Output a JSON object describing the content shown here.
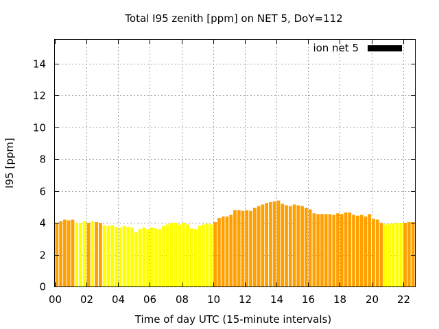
{
  "chart_data": {
    "type": "bar",
    "title": "Total I95 zenith [ppm] on NET 5, DoY=112",
    "xlabel": "Time of day UTC (15-minute intervals)",
    "ylabel": "I95 [ppm]",
    "ylim": [
      0,
      15.5
    ],
    "xlim": [
      0,
      22.75
    ],
    "yticks": [
      "0",
      "2",
      "4",
      "6",
      "8",
      "10",
      "12",
      "14"
    ],
    "xticks": [
      "00",
      "02",
      "04",
      "06",
      "08",
      "10",
      "12",
      "14",
      "16",
      "18",
      "20",
      "22"
    ],
    "grid": true,
    "legend_position": "top-right",
    "series": [
      {
        "name": "ion net 5",
        "legend_color": "#000000"
      }
    ],
    "color_scheme": {
      "orange": "#ffa000",
      "yellow": "#ffff00"
    },
    "bar_interval_hours": 0.25,
    "x": [
      0.0,
      0.25,
      0.5,
      0.75,
      1.0,
      1.25,
      1.5,
      1.75,
      2.0,
      2.25,
      2.5,
      2.75,
      3.0,
      3.25,
      3.5,
      3.75,
      4.0,
      4.25,
      4.5,
      4.75,
      5.0,
      5.25,
      5.5,
      5.75,
      6.0,
      6.25,
      6.5,
      6.75,
      7.0,
      7.25,
      7.5,
      7.75,
      8.0,
      8.25,
      8.5,
      8.75,
      9.0,
      9.25,
      9.5,
      9.75,
      10.0,
      10.25,
      10.5,
      10.75,
      11.0,
      11.25,
      11.5,
      11.75,
      12.0,
      12.25,
      12.5,
      12.75,
      13.0,
      13.25,
      13.5,
      13.75,
      14.0,
      14.25,
      14.5,
      14.75,
      15.0,
      15.25,
      15.5,
      15.75,
      16.0,
      16.25,
      16.5,
      16.75,
      17.0,
      17.25,
      17.5,
      17.75,
      18.0,
      18.25,
      18.5,
      18.75,
      19.0,
      19.25,
      19.5,
      19.75,
      20.0,
      20.25,
      20.5,
      20.75,
      21.0,
      21.25,
      21.5,
      21.75,
      22.0,
      22.25,
      22.5
    ],
    "values": [
      4.0,
      4.1,
      4.2,
      4.15,
      4.2,
      4.0,
      4.0,
      4.1,
      4.0,
      4.1,
      4.05,
      4.0,
      3.85,
      3.8,
      3.85,
      3.75,
      3.7,
      3.8,
      3.75,
      3.7,
      3.4,
      3.6,
      3.7,
      3.6,
      3.7,
      3.65,
      3.6,
      3.8,
      3.9,
      4.0,
      4.0,
      3.9,
      4.0,
      3.9,
      3.65,
      3.6,
      3.8,
      3.9,
      3.95,
      3.9,
      4.05,
      4.3,
      4.4,
      4.4,
      4.5,
      4.8,
      4.8,
      4.75,
      4.8,
      4.75,
      4.95,
      5.05,
      5.15,
      5.25,
      5.3,
      5.35,
      5.4,
      5.2,
      5.1,
      5.05,
      5.15,
      5.1,
      5.05,
      4.95,
      4.85,
      4.6,
      4.55,
      4.55,
      4.55,
      4.55,
      4.5,
      4.6,
      4.55,
      4.65,
      4.65,
      4.5,
      4.45,
      4.5,
      4.4,
      4.55,
      4.25,
      4.2,
      4.0,
      3.9,
      3.95,
      3.95,
      4.0,
      4.0,
      4.0,
      4.05,
      4.05
    ],
    "colors": [
      "orange",
      "orange",
      "orange",
      "orange",
      "orange",
      "yellow",
      "yellow",
      "yellow",
      "orange",
      "yellow",
      "orange",
      "orange",
      "yellow",
      "yellow",
      "yellow",
      "yellow",
      "yellow",
      "yellow",
      "yellow",
      "yellow",
      "yellow",
      "yellow",
      "yellow",
      "yellow",
      "yellow",
      "yellow",
      "yellow",
      "yellow",
      "yellow",
      "yellow",
      "yellow",
      "yellow",
      "yellow",
      "yellow",
      "yellow",
      "yellow",
      "yellow",
      "yellow",
      "yellow",
      "yellow",
      "orange",
      "orange",
      "orange",
      "orange",
      "orange",
      "orange",
      "orange",
      "orange",
      "orange",
      "orange",
      "orange",
      "orange",
      "orange",
      "orange",
      "orange",
      "orange",
      "orange",
      "orange",
      "orange",
      "orange",
      "orange",
      "orange",
      "orange",
      "orange",
      "orange",
      "orange",
      "orange",
      "orange",
      "orange",
      "orange",
      "orange",
      "orange",
      "orange",
      "orange",
      "orange",
      "orange",
      "orange",
      "orange",
      "orange",
      "orange",
      "orange",
      "orange",
      "orange",
      "yellow",
      "yellow",
      "yellow",
      "yellow",
      "yellow",
      "orange",
      "orange",
      "orange"
    ]
  }
}
